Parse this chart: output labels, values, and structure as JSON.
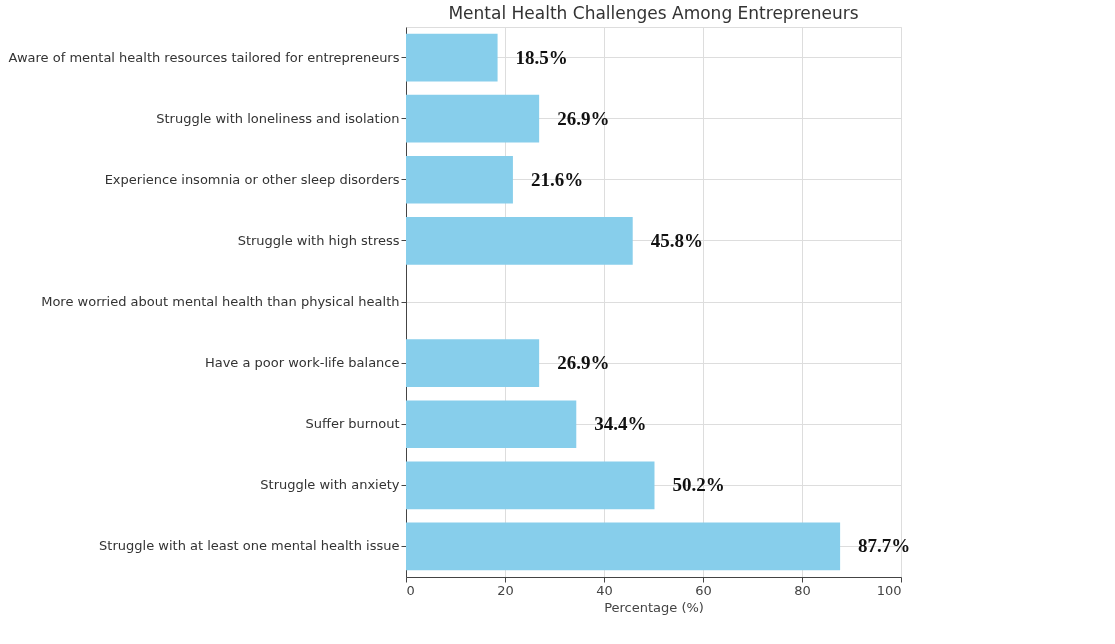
{
  "chart_data": {
    "type": "bar",
    "orientation": "horizontal",
    "title": "Mental Health Challenges Among Entrepreneurs",
    "xlabel": "Percentage (%)",
    "categories": [
      "Aware of mental health resources tailored for entrepreneurs",
      "Struggle with loneliness and isolation",
      "Experience insomnia or other sleep disorders",
      "Struggle with high stress",
      "More worried about mental health than physical health",
      "Have a poor work-life balance",
      "Suffer burnout",
      "Struggle with anxiety",
      "Struggle with at least one mental health issue"
    ],
    "values": [
      18.5,
      26.9,
      21.6,
      45.8,
      null,
      26.9,
      34.4,
      50.2,
      87.7
    ],
    "value_labels": [
      "18.5%",
      "26.9%",
      "21.6%",
      "45.8%",
      null,
      "26.9%",
      "34.4%",
      "50.2%",
      "87.7%"
    ],
    "color": "#87ceeb",
    "xlim": [
      0,
      100
    ],
    "xticks": [
      0,
      20,
      40,
      60,
      80,
      100
    ],
    "grid": true
  }
}
